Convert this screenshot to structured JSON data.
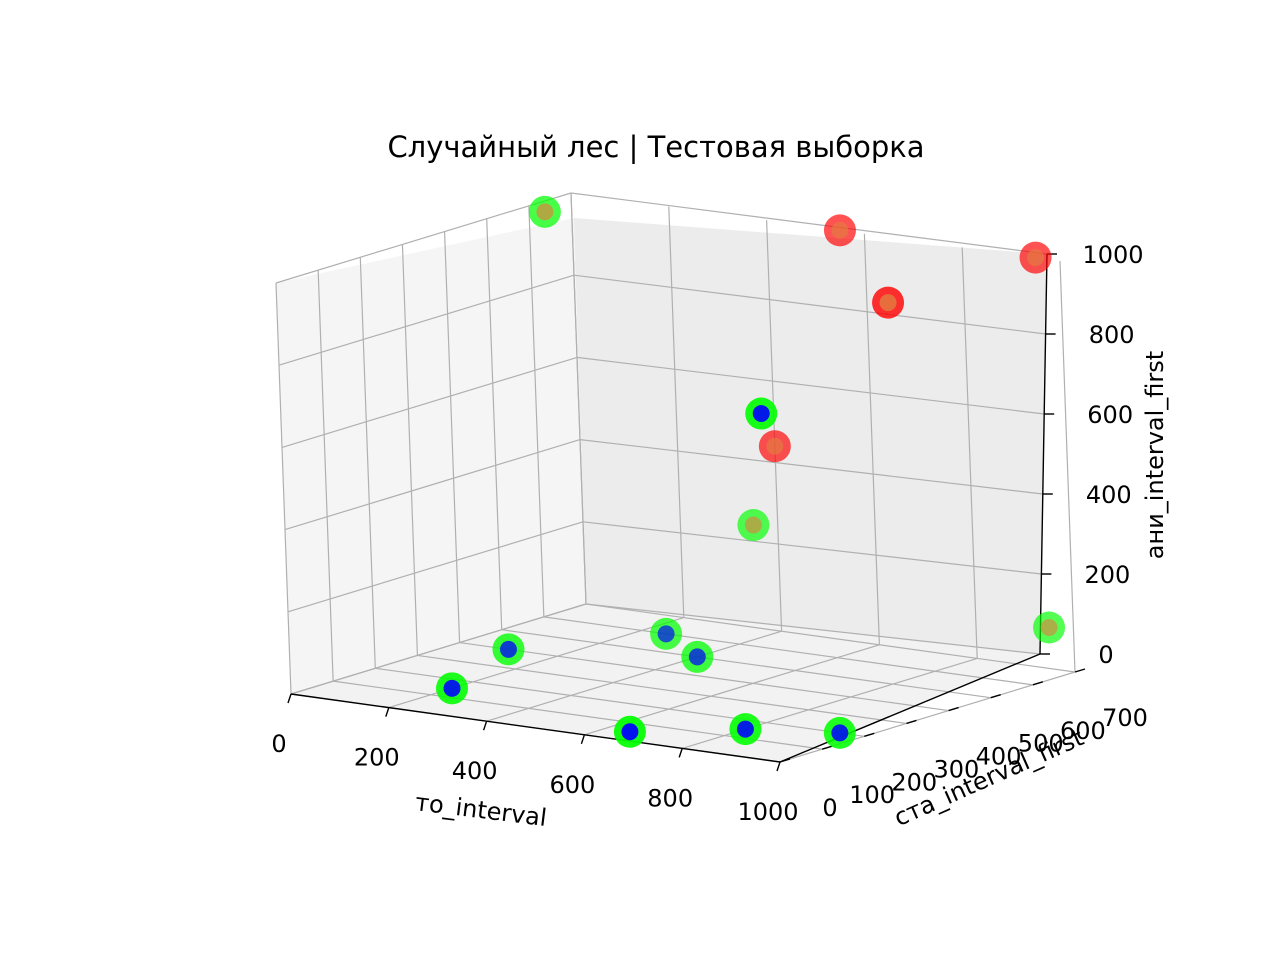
{
  "chart_data": {
    "type": "scatter",
    "projection": "3d",
    "title": "Случайный лес | Тестовая выборка",
    "xlabel": "то_interval",
    "ylabel": "ста_interval_first",
    "zlabel": "ани_interval_first",
    "xticks": [
      "0",
      "200",
      "400",
      "600",
      "800",
      "1000"
    ],
    "yticks": [
      "0",
      "100",
      "200",
      "300",
      "400",
      "500",
      "600",
      "700"
    ],
    "zticks": [
      "0",
      "200",
      "400",
      "600",
      "800",
      "1000"
    ],
    "xlim": [
      0,
      1000
    ],
    "ylim": [
      0,
      700
    ],
    "zlim": [
      0,
      1000
    ],
    "grid": true,
    "colors": {
      "true_class_0": "#00ff00",
      "true_class_1": "#ff0000",
      "pred_class_0": "#0000ff",
      "pred_class_1": "#e08040"
    },
    "points": [
      {
        "x": 50,
        "y": 580,
        "z": 1000,
        "true": "class_0",
        "pred": "class_1"
      },
      {
        "x": 550,
        "y": 700,
        "z": 1000,
        "true": "class_1",
        "pred": "class_1"
      },
      {
        "x": 950,
        "y": 350,
        "z": 1000,
        "true": "class_1",
        "pred": "class_1"
      },
      {
        "x": 950,
        "y": 700,
        "z": 1000,
        "true": "class_1",
        "pred": "class_1"
      },
      {
        "x": 900,
        "y": 100,
        "z": 800,
        "true": "class_0",
        "pred": "class_0"
      },
      {
        "x": 400,
        "y": 700,
        "z": 450,
        "true": "class_1",
        "pred": "class_1"
      },
      {
        "x": 350,
        "y": 700,
        "z": 250,
        "true": "class_0",
        "pred": "class_1"
      },
      {
        "x": 400,
        "y": 500,
        "z": 0,
        "true": "class_0",
        "pred": "class_0"
      },
      {
        "x": 250,
        "y": 600,
        "z": 0,
        "true": "class_0",
        "pred": "class_0"
      },
      {
        "x": 100,
        "y": 400,
        "z": 0,
        "true": "class_0",
        "pred": "class_0"
      },
      {
        "x": 200,
        "y": 150,
        "z": 0,
        "true": "class_0",
        "pred": "class_0"
      },
      {
        "x": 650,
        "y": 50,
        "z": 0,
        "true": "class_0",
        "pred": "class_0"
      },
      {
        "x": 800,
        "y": 150,
        "z": 0,
        "true": "class_0",
        "pred": "class_0"
      },
      {
        "x": 950,
        "y": 200,
        "z": 0,
        "true": "class_0",
        "pred": "class_0"
      },
      {
        "x": 950,
        "y": 700,
        "z": 100,
        "true": "class_0",
        "pred": "class_1"
      }
    ]
  }
}
